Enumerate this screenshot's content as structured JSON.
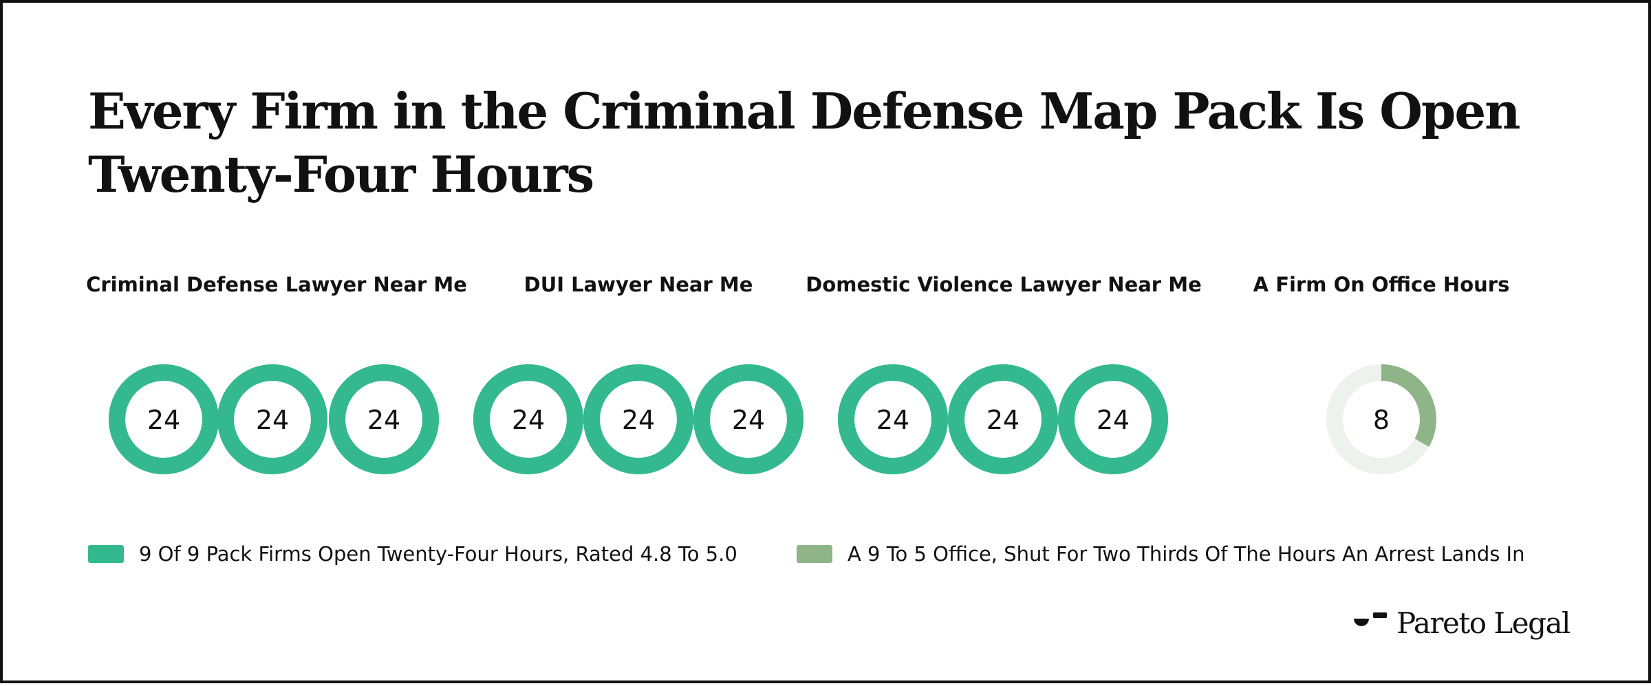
{
  "title": {
    "line1": "Every Firm in the Criminal Defense Map Pack Is Open",
    "line2": "Twenty-Four Hours"
  },
  "colors": {
    "open_24": "#33b98d",
    "office": "#8fb487",
    "office_track": "#edf3ec",
    "text": "#111111"
  },
  "chart_data": {
    "type": "donut-grid",
    "title": "Every Firm in the Criminal Defense Map Pack Is Open Twenty-Four Hours",
    "unit_total": 24,
    "groups": [
      {
        "label": "Criminal Defense Lawyer Near Me",
        "values": [
          24,
          24,
          24
        ],
        "series": "open_24"
      },
      {
        "label": "DUI Lawyer Near Me",
        "values": [
          24,
          24,
          24
        ],
        "series": "open_24"
      },
      {
        "label": "Domestic Violence Lawyer Near Me",
        "values": [
          24,
          24,
          24
        ],
        "series": "open_24"
      },
      {
        "label": "A Firm On Office Hours",
        "values": [
          8
        ],
        "series": "office"
      }
    ],
    "legend": [
      {
        "key": "open_24",
        "label": "9 Of 9 Pack Firms Open Twenty-Four Hours, Rated 4.8 To 5.0"
      },
      {
        "key": "office",
        "label": "A 9 To 5 Office, Shut For Two Thirds Of The Hours An Arrest Lands In"
      }
    ],
    "legend_position": "bottom-left"
  },
  "brand": {
    "name": "Pareto Legal"
  }
}
